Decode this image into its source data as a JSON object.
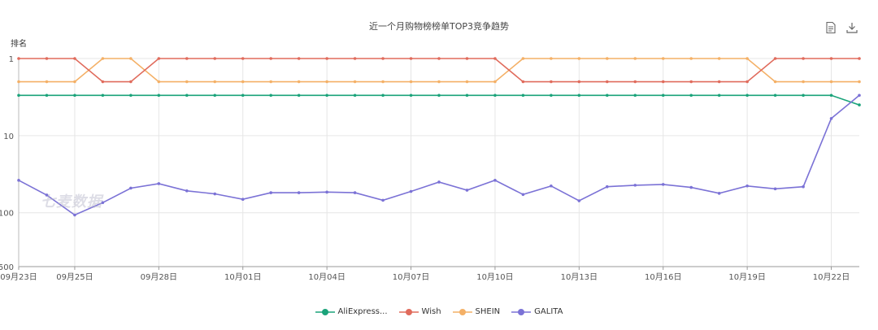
{
  "chart_data": {
    "type": "line",
    "title": "近一个月购物榜榜单TOP3竞争趋势",
    "ylabel": "排名",
    "y_scale": "log",
    "y_inverted": true,
    "ylim": [
      1,
      500
    ],
    "y_ticks": [
      "1",
      "10",
      "100",
      "500"
    ],
    "x": [
      "09月23日",
      "09月24日",
      "09月25日",
      "09月26日",
      "09月27日",
      "09月28日",
      "09月29日",
      "09月30日",
      "10月01日",
      "10月02日",
      "10月03日",
      "10月04日",
      "10月05日",
      "10月06日",
      "10月07日",
      "10月08日",
      "10月09日",
      "10月10日",
      "10月11日",
      "10月12日",
      "10月13日",
      "10月14日",
      "10月15日",
      "10月16日",
      "10月17日",
      "10月18日",
      "10月19日",
      "10月20日",
      "10月21日",
      "10月22日",
      "10月23日"
    ],
    "x_tick_labels": [
      "09月23日",
      "09月25日",
      "09月28日",
      "10月01日",
      "10月04日",
      "10月07日",
      "10月10日",
      "10月13日",
      "10月16日",
      "10月19日",
      "10月22日"
    ],
    "x_tick_indices": [
      0,
      2,
      5,
      8,
      11,
      14,
      17,
      20,
      23,
      26,
      29
    ],
    "grid": true,
    "legend_position": "bottom",
    "series": [
      {
        "name": "AliExpress...",
        "color": "#1aa37a",
        "values": [
          3,
          3,
          3,
          3,
          3,
          3,
          3,
          3,
          3,
          3,
          3,
          3,
          3,
          3,
          3,
          3,
          3,
          3,
          3,
          3,
          3,
          3,
          3,
          3,
          3,
          3,
          3,
          3,
          3,
          3,
          4
        ]
      },
      {
        "name": "Wish",
        "color": "#e06b5c",
        "values": [
          1,
          1,
          1,
          2,
          2,
          1,
          1,
          1,
          1,
          1,
          1,
          1,
          1,
          1,
          1,
          1,
          1,
          1,
          2,
          2,
          2,
          2,
          2,
          2,
          2,
          2,
          2,
          1,
          1,
          1,
          1
        ]
      },
      {
        "name": "SHEIN",
        "color": "#f4b066",
        "values": [
          2,
          2,
          2,
          1,
          1,
          2,
          2,
          2,
          2,
          2,
          2,
          2,
          2,
          2,
          2,
          2,
          2,
          2,
          1,
          1,
          1,
          1,
          1,
          1,
          1,
          1,
          1,
          2,
          2,
          2,
          2
        ]
      },
      {
        "name": "GALITA",
        "color": "#7b72d6",
        "values": [
          38,
          59,
          107,
          74,
          48,
          42,
          52,
          57,
          67,
          55,
          55,
          54,
          55,
          69,
          53,
          40,
          51,
          38,
          58,
          45,
          70,
          46,
          44,
          43,
          47,
          56,
          45,
          49,
          46,
          6,
          3
        ]
      }
    ]
  },
  "watermark": "七麦数据"
}
